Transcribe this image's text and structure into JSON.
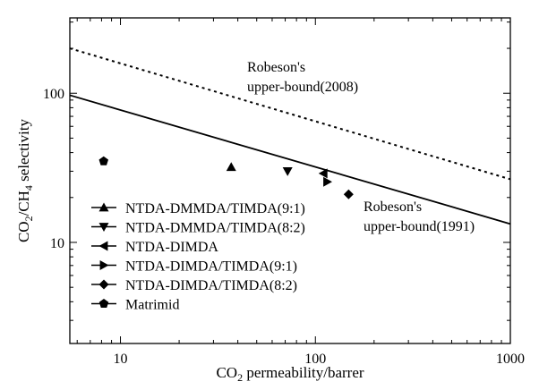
{
  "chart_data": {
    "type": "scatter",
    "xscale": "log",
    "yscale": "log",
    "xlim": [
      5.5,
      1000
    ],
    "ylim": [
      2.1,
      320
    ],
    "xlabel": {
      "base": "CO",
      "sub": "2",
      "rest": " permeability/barrer"
    },
    "ylabel": {
      "part1": "CO",
      "sub1": "2",
      "part2": "/CH",
      "sub2": "4",
      "part3": " selectivity"
    },
    "x_ticks": [
      {
        "value": 10,
        "label": "10"
      },
      {
        "value": 100,
        "label": "100"
      },
      {
        "value": 1000,
        "label": "1000"
      }
    ],
    "y_ticks": [
      {
        "value": 10,
        "label": "10"
      },
      {
        "value": 100,
        "label": "100"
      }
    ],
    "series": [
      {
        "name": "NTDA-DMMDA/TIMDA(9:1)",
        "marker": "triangle-up",
        "points": [
          [
            37,
            32
          ]
        ]
      },
      {
        "name": "NTDA-DMMDA/TIMDA(8:2)",
        "marker": "triangle-down",
        "points": [
          [
            72,
            30
          ]
        ]
      },
      {
        "name": "NTDA-DIMDA",
        "marker": "triangle-left",
        "points": [
          [
            110,
            29
          ]
        ]
      },
      {
        "name": "NTDA-DIMDA/TIMDA(9:1)",
        "marker": "triangle-right",
        "points": [
          [
            115,
            25.5
          ]
        ]
      },
      {
        "name": "NTDA-DIMDA/TIMDA(8:2)",
        "marker": "diamond",
        "points": [
          [
            148,
            21
          ]
        ]
      },
      {
        "name": "Matrimid",
        "marker": "pentagon",
        "points": [
          [
            8.2,
            35
          ]
        ]
      }
    ],
    "lines": [
      {
        "style": "solid",
        "points": [
          [
            5.5,
            97
          ],
          [
            1000,
            13.3
          ]
        ]
      },
      {
        "style": "dotted",
        "points": [
          [
            5.5,
            200
          ],
          [
            1000,
            26.5
          ]
        ]
      }
    ],
    "annotations": [
      {
        "lines": [
          "Robeson's",
          "upper-bound(2008)"
        ]
      },
      {
        "lines": [
          "Robeson's",
          "upper-bound(1991)"
        ]
      }
    ],
    "legend_position": "lower-left"
  }
}
